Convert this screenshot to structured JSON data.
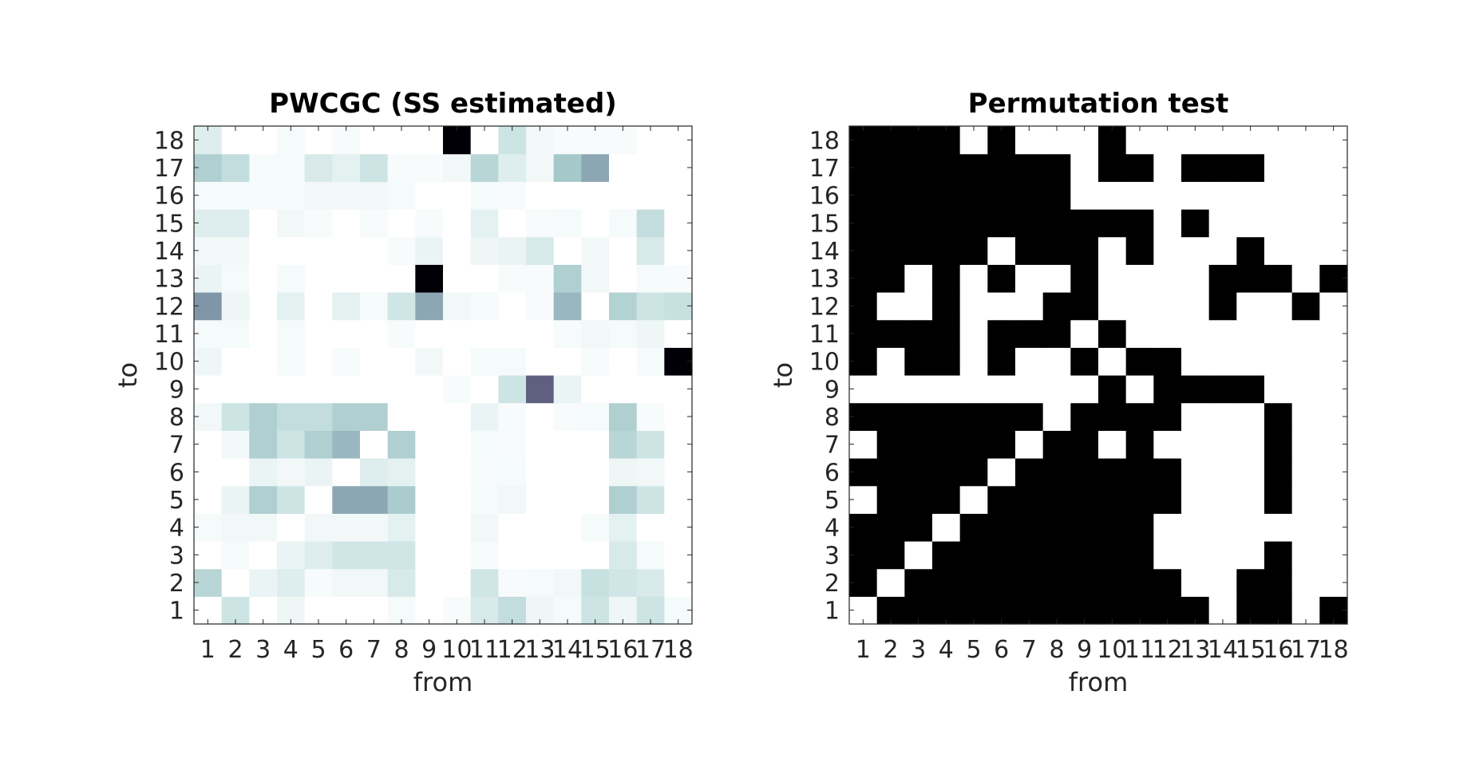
{
  "chart_data": [
    {
      "type": "heatmap",
      "title": "PWCGC (SS estimated)",
      "xlabel": "from",
      "ylabel": "to",
      "x_ticks": [
        "1",
        "2",
        "3",
        "4",
        "5",
        "6",
        "7",
        "8",
        "9",
        "10",
        "11",
        "12",
        "13",
        "14",
        "15",
        "16",
        "17",
        "18"
      ],
      "y_ticks": [
        "1",
        "2",
        "3",
        "4",
        "5",
        "6",
        "7",
        "8",
        "9",
        "10",
        "11",
        "12",
        "13",
        "14",
        "15",
        "16",
        "17",
        "18"
      ],
      "value_range": [
        0,
        1
      ],
      "colormap": "bone (reversed: white = 0, black = 1)",
      "values_rows_to_1_to_18": [
        [
          0,
          0.15,
          0,
          0.05,
          0,
          0,
          0,
          0.03,
          0,
          0.02,
          0.12,
          0.2,
          0.05,
          0.03,
          0.15,
          0.05,
          0.15,
          0.03
        ],
        [
          0.25,
          0,
          0.06,
          0.1,
          0.02,
          0.04,
          0.04,
          0.12,
          0,
          0,
          0.14,
          0.02,
          0.03,
          0.04,
          0.18,
          0.14,
          0.12,
          0
        ],
        [
          0,
          0.03,
          0,
          0.06,
          0.1,
          0.14,
          0.14,
          0.14,
          0,
          0,
          0.02,
          0,
          0,
          0,
          0,
          0.12,
          0.03,
          0
        ],
        [
          0.03,
          0.04,
          0.04,
          0,
          0.04,
          0.04,
          0.04,
          0.08,
          0,
          0,
          0.04,
          0,
          0,
          0,
          0.03,
          0.08,
          0,
          0
        ],
        [
          0,
          0.06,
          0.3,
          0.15,
          0,
          0.45,
          0.45,
          0.32,
          0,
          0,
          0.03,
          0.04,
          0,
          0,
          0,
          0.3,
          0.15,
          0
        ],
        [
          0,
          0,
          0.06,
          0.04,
          0.06,
          0,
          0.1,
          0.08,
          0,
          0,
          0.02,
          0.03,
          0,
          0,
          0,
          0.05,
          0.04,
          0
        ],
        [
          0,
          0.04,
          0.3,
          0.15,
          0.3,
          0.4,
          0,
          0.3,
          0,
          0,
          0.03,
          0.02,
          0,
          0,
          0,
          0.25,
          0.15,
          0
        ],
        [
          0.04,
          0.15,
          0.3,
          0.2,
          0.2,
          0.3,
          0.3,
          0,
          0,
          0,
          0.06,
          0.02,
          0,
          0.02,
          0.03,
          0.3,
          0.02,
          0
        ],
        [
          0,
          0,
          0,
          0,
          0,
          0,
          0,
          0,
          0,
          0.02,
          0,
          0.15,
          0.75,
          0.06,
          0,
          0,
          0,
          0
        ],
        [
          0.05,
          0,
          0,
          0.03,
          0,
          0.02,
          0,
          0,
          0.04,
          0,
          0.03,
          0.03,
          0,
          0,
          0.02,
          0,
          0.03,
          1
        ],
        [
          0.03,
          0.03,
          0,
          0.03,
          0,
          0,
          0,
          0.02,
          0,
          0,
          0,
          0,
          0,
          0.02,
          0.04,
          0.03,
          0.05,
          0
        ],
        [
          0.5,
          0.05,
          0,
          0.08,
          0,
          0.08,
          0.03,
          0.14,
          0.45,
          0.04,
          0.03,
          0,
          0.02,
          0.4,
          0,
          0.28,
          0.15,
          0.18
        ],
        [
          0.06,
          0.03,
          0,
          0.03,
          0,
          0,
          0,
          0,
          1,
          0,
          0,
          0.02,
          0.02,
          0.3,
          0.04,
          0,
          0.03,
          0.02
        ],
        [
          0.04,
          0.04,
          0,
          0,
          0,
          0,
          0,
          0.02,
          0.06,
          0,
          0.05,
          0.06,
          0.12,
          0,
          0.04,
          0,
          0.12,
          0
        ],
        [
          0.1,
          0.1,
          0,
          0.04,
          0.02,
          0,
          0.02,
          0,
          0.02,
          0,
          0.08,
          0,
          0.02,
          0.03,
          0,
          0.03,
          0.2,
          0
        ],
        [
          0.03,
          0.03,
          0.03,
          0.03,
          0.04,
          0.04,
          0.04,
          0.03,
          0,
          0,
          0.03,
          0.02,
          0,
          0,
          0,
          0,
          0,
          0
        ],
        [
          0.3,
          0.2,
          0.03,
          0.03,
          0.12,
          0.08,
          0.15,
          0.02,
          0.02,
          0.04,
          0.25,
          0.1,
          0.04,
          0.35,
          0.45,
          0,
          0,
          0
        ],
        [
          0.1,
          0,
          0,
          0.03,
          0,
          0.02,
          0,
          0,
          0,
          1,
          0,
          0.15,
          0.04,
          0.02,
          0.02,
          0.02,
          0,
          0
        ]
      ]
    },
    {
      "type": "heatmap",
      "title": "Permutation test",
      "xlabel": "from",
      "ylabel": "to",
      "x_ticks": [
        "1",
        "2",
        "3",
        "4",
        "5",
        "6",
        "7",
        "8",
        "9",
        "10",
        "11",
        "12",
        "13",
        "14",
        "15",
        "16",
        "17",
        "18"
      ],
      "y_ticks": [
        "1",
        "2",
        "3",
        "4",
        "5",
        "6",
        "7",
        "8",
        "9",
        "10",
        "11",
        "12",
        "13",
        "14",
        "15",
        "16",
        "17",
        "18"
      ],
      "value_range": [
        0,
        1
      ],
      "colormap": "binary (white = 0, black = 1)",
      "values_rows_to_1_to_18": [
        [
          0,
          1,
          1,
          1,
          1,
          1,
          1,
          1,
          1,
          1,
          1,
          1,
          1,
          0,
          1,
          1,
          0,
          1
        ],
        [
          1,
          0,
          1,
          1,
          1,
          1,
          1,
          1,
          1,
          1,
          1,
          1,
          0,
          0,
          1,
          1,
          0,
          0
        ],
        [
          1,
          1,
          0,
          1,
          1,
          1,
          1,
          1,
          1,
          1,
          1,
          0,
          0,
          0,
          0,
          1,
          0,
          0
        ],
        [
          1,
          1,
          1,
          0,
          1,
          1,
          1,
          1,
          1,
          1,
          1,
          0,
          0,
          0,
          0,
          0,
          0,
          0
        ],
        [
          0,
          1,
          1,
          1,
          0,
          1,
          1,
          1,
          1,
          1,
          1,
          1,
          0,
          0,
          0,
          1,
          0,
          0
        ],
        [
          1,
          1,
          1,
          1,
          1,
          0,
          1,
          1,
          1,
          1,
          1,
          1,
          0,
          0,
          0,
          1,
          0,
          0
        ],
        [
          0,
          1,
          1,
          1,
          1,
          1,
          0,
          1,
          1,
          0,
          1,
          0,
          0,
          0,
          0,
          1,
          0,
          0
        ],
        [
          1,
          1,
          1,
          1,
          1,
          1,
          1,
          0,
          1,
          1,
          1,
          1,
          0,
          0,
          0,
          1,
          0,
          0
        ],
        [
          0,
          0,
          0,
          0,
          0,
          0,
          0,
          0,
          0,
          1,
          0,
          1,
          1,
          1,
          1,
          0,
          0,
          0
        ],
        [
          1,
          0,
          1,
          1,
          0,
          1,
          0,
          0,
          1,
          0,
          1,
          1,
          0,
          0,
          0,
          0,
          0,
          0
        ],
        [
          1,
          1,
          1,
          1,
          0,
          1,
          1,
          1,
          0,
          1,
          0,
          0,
          0,
          0,
          0,
          0,
          0,
          0
        ],
        [
          1,
          0,
          0,
          1,
          0,
          0,
          0,
          1,
          1,
          0,
          0,
          0,
          0,
          1,
          0,
          0,
          1,
          0
        ],
        [
          1,
          1,
          0,
          1,
          0,
          1,
          0,
          0,
          1,
          0,
          0,
          0,
          0,
          1,
          1,
          1,
          0,
          1
        ],
        [
          1,
          1,
          1,
          1,
          1,
          0,
          1,
          1,
          1,
          0,
          1,
          0,
          0,
          0,
          1,
          0,
          0,
          0
        ],
        [
          1,
          1,
          1,
          1,
          1,
          1,
          1,
          1,
          1,
          1,
          1,
          0,
          1,
          0,
          0,
          0,
          0,
          0
        ],
        [
          1,
          1,
          1,
          1,
          1,
          1,
          1,
          1,
          0,
          0,
          0,
          0,
          0,
          0,
          0,
          0,
          0,
          0
        ],
        [
          1,
          1,
          1,
          1,
          1,
          1,
          1,
          1,
          0,
          1,
          1,
          0,
          1,
          1,
          1,
          0,
          0,
          0
        ],
        [
          1,
          1,
          1,
          1,
          0,
          1,
          0,
          0,
          0,
          1,
          0,
          0,
          0,
          0,
          0,
          0,
          0,
          0
        ]
      ]
    }
  ]
}
